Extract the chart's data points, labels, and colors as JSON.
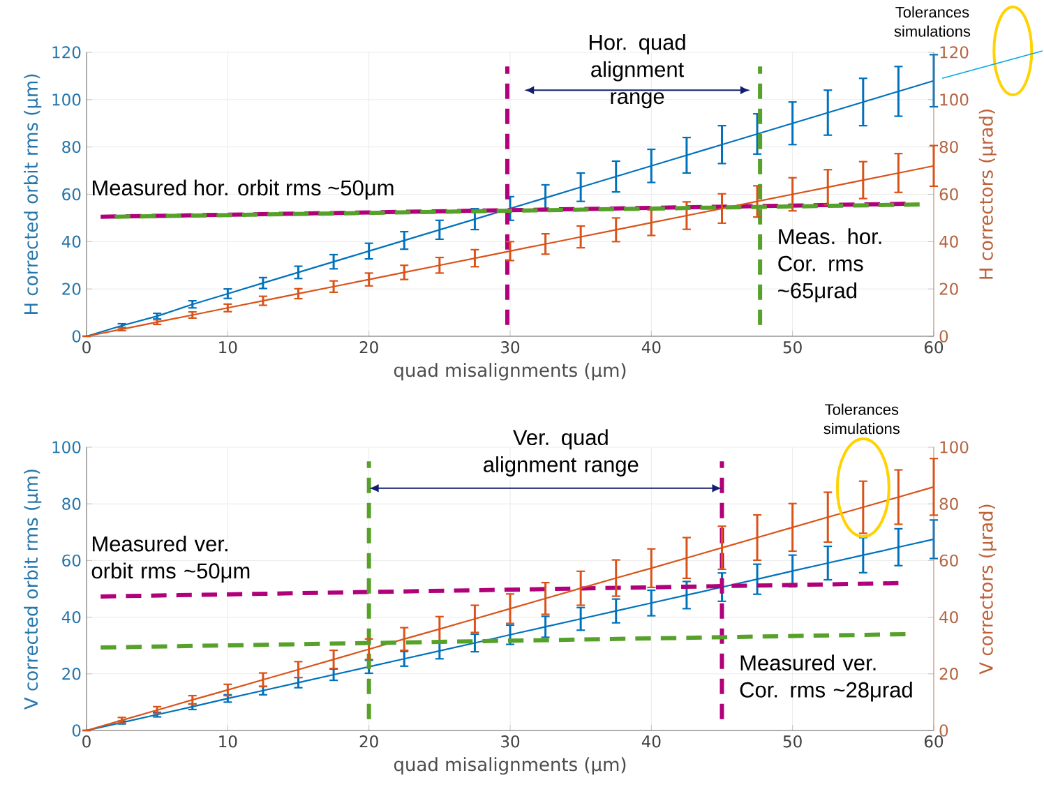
{
  "chart_data": [
    {
      "type": "line",
      "xlabel": "quad misalignments (μm)",
      "ylabel": "H corrected orbit rms (μm)",
      "y2label": "H correctors (μrad)",
      "xlim": [
        0,
        60
      ],
      "ylim": [
        0,
        120
      ],
      "y2lim": [
        0,
        120
      ],
      "xticks": [
        0,
        10,
        20,
        30,
        40,
        50,
        60
      ],
      "yticks": [
        0,
        20,
        40,
        60,
        80,
        100,
        120
      ],
      "y2ticks": [
        0,
        20,
        40,
        60,
        80,
        100,
        120
      ],
      "grid": true,
      "series": [
        {
          "color": "#0072bd",
          "x": [
            0,
            2.5,
            5,
            7.5,
            10,
            12.5,
            15,
            17.5,
            20,
            22.5,
            25,
            27.5,
            30,
            32.5,
            35,
            37.5,
            40,
            42.5,
            45,
            47.5,
            50,
            52.5,
            55,
            57.5,
            60
          ],
          "values": [
            0,
            4.5,
            8.5,
            13.5,
            18,
            22.5,
            27,
            31.5,
            36,
            40.5,
            45,
            49.5,
            54,
            58.5,
            63,
            67.5,
            72,
            76.5,
            81,
            85.5,
            90,
            94.5,
            99,
            103.5,
            108
          ],
          "errors": [
            0,
            0.8,
            1.2,
            1.5,
            2,
            2.3,
            2.6,
            3,
            3.3,
            3.7,
            4,
            4.4,
            5,
            5.5,
            6,
            6.5,
            7,
            7.5,
            8,
            8.5,
            9,
            9.5,
            10,
            10.5,
            11
          ]
        },
        {
          "color": "#d95319",
          "axis": "y2",
          "x": [
            0,
            2.5,
            5,
            7.5,
            10,
            12.5,
            15,
            17.5,
            20,
            22.5,
            25,
            27.5,
            30,
            32.5,
            35,
            37.5,
            40,
            42.5,
            45,
            47.5,
            50,
            52.5,
            55,
            57.5,
            60
          ],
          "values": [
            0,
            3,
            6,
            9,
            12,
            15,
            18,
            21,
            24,
            27,
            30,
            33,
            36,
            39,
            42,
            45,
            48,
            51,
            54,
            57,
            60,
            63,
            66,
            69,
            72
          ],
          "errors": [
            0,
            0.6,
            1,
            1.3,
            1.6,
            1.9,
            2.1,
            2.4,
            2.7,
            3,
            3.3,
            3.6,
            4,
            4.3,
            4.6,
            5,
            5.4,
            5.8,
            6.2,
            6.6,
            7,
            7.4,
            7.8,
            8.2,
            8.6
          ]
        },
        {
          "color": "#b0007a",
          "line_style": "dashed",
          "x": [
            1,
            58
          ],
          "values": [
            50.5,
            56
          ]
        },
        {
          "color": "#56a12a",
          "line_style": "dashed",
          "axis": "y2",
          "x": [
            2,
            59
          ],
          "values": [
            50.5,
            55.7
          ]
        }
      ],
      "ref_lines": [
        {
          "axis": "x",
          "value": 29.8,
          "color": "#b0007a",
          "line_style": "dashed"
        },
        {
          "axis": "x",
          "value": 47.7,
          "color": "#56a12a",
          "line_style": "dashed"
        }
      ],
      "annotations": [
        "Hor. quad alignment range",
        "Measured hor. orbit rms ~50μm",
        "Meas. hor. Cor. rms ~65μrad",
        "Tolerances simulations"
      ]
    },
    {
      "type": "line",
      "xlabel": "quad misalignments (μm)",
      "ylabel": "V corrected orbit rms (μm)",
      "y2label": "V correctors (μrad)",
      "xlim": [
        0,
        60
      ],
      "ylim": [
        0,
        100
      ],
      "y2lim": [
        0,
        100
      ],
      "xticks": [
        0,
        10,
        20,
        30,
        40,
        50,
        60
      ],
      "yticks": [
        0,
        20,
        40,
        60,
        80,
        100
      ],
      "y2ticks": [
        0,
        20,
        40,
        60,
        80,
        100
      ],
      "grid": true,
      "series": [
        {
          "color": "#0072bd",
          "x": [
            0,
            2.5,
            5,
            7.5,
            10,
            12.5,
            15,
            17.5,
            20,
            22.5,
            25,
            27.5,
            30,
            32.5,
            35,
            37.5,
            40,
            42.5,
            45,
            47.5,
            50,
            52.5,
            55,
            57.5,
            60
          ],
          "values": [
            0,
            2.8,
            5.6,
            8.4,
            11.3,
            14.1,
            16.9,
            19.7,
            22.5,
            25.3,
            28.1,
            30.9,
            33.8,
            36.6,
            39.4,
            42.2,
            45,
            47.8,
            50.6,
            53.4,
            56.3,
            59.1,
            61.9,
            64.7,
            67.5
          ],
          "errors": [
            0,
            0.5,
            0.8,
            1,
            1.3,
            1.5,
            1.8,
            2,
            2.3,
            2.6,
            2.8,
            3.1,
            3.4,
            3.7,
            4,
            4.2,
            4.5,
            4.8,
            5,
            5.3,
            5.6,
            5.9,
            6.2,
            6.5,
            6.8
          ]
        },
        {
          "color": "#d95319",
          "axis": "y2",
          "x": [
            0,
            2.5,
            5,
            7.5,
            10,
            12.5,
            15,
            17.5,
            20,
            22.5,
            25,
            27.5,
            30,
            32.5,
            35,
            37.5,
            40,
            42.5,
            45,
            47.5,
            50,
            52.5,
            55,
            57.5,
            60
          ],
          "values": [
            0,
            3.6,
            7.2,
            10.8,
            14.3,
            17.9,
            21.5,
            25.1,
            28.7,
            32.3,
            35.8,
            39.4,
            43,
            46.6,
            50.2,
            53.8,
            57.3,
            60.9,
            64.5,
            68.1,
            71.7,
            75.3,
            78.8,
            82.4,
            86
          ],
          "errors": [
            0,
            1,
            1.2,
            1.5,
            2,
            2.4,
            2.8,
            3.2,
            3.6,
            4,
            4.4,
            4.8,
            5.2,
            5.6,
            6,
            6.4,
            6.8,
            7.2,
            7.6,
            8,
            8.4,
            8.8,
            9.2,
            9.6,
            10
          ]
        },
        {
          "color": "#b0007a",
          "line_style": "dashed",
          "x": [
            1,
            57.5
          ],
          "values": [
            47.3,
            52
          ]
        },
        {
          "color": "#56a12a",
          "line_style": "dashed",
          "axis": "y2",
          "x": [
            1,
            58
          ],
          "values": [
            29.3,
            34
          ]
        }
      ],
      "ref_lines": [
        {
          "axis": "x",
          "value": 20,
          "color": "#56a12a",
          "line_style": "dashed"
        },
        {
          "axis": "x",
          "value": 45,
          "color": "#b0007a",
          "line_style": "dashed"
        }
      ],
      "annotations": [
        "Ver. quad alignment range",
        "Measured ver. orbit rms ~50μm",
        "Measured ver. Cor. rms ~28μrad",
        "Tolerances simulations"
      ]
    }
  ]
}
